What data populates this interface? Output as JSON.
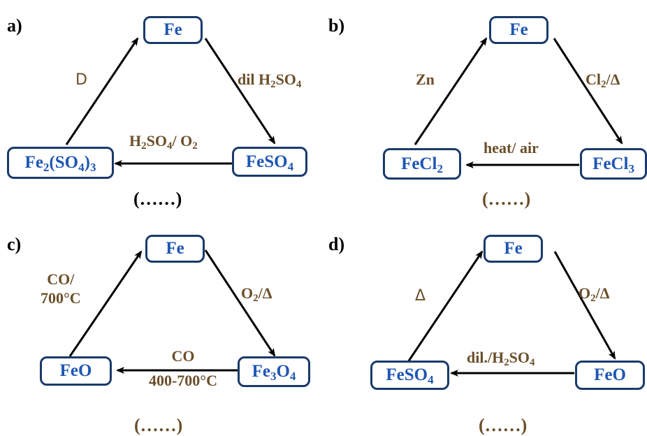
{
  "panels": [
    {
      "letter": "a)",
      "top": {
        "text": "Fe"
      },
      "right": {
        "base": "FeSO",
        "sub": "4"
      },
      "left": {
        "p1": "Fe",
        "s1": "2",
        "p2": "(SO",
        "s2": "4",
        "p3": ")",
        "s3": "3"
      },
      "edge_left": "D",
      "edge_right": {
        "p1": "dil H",
        "s1": "2",
        "p2": "SO",
        "s2": "4"
      },
      "edge_bottom": {
        "p1": "H",
        "s1": "2",
        "p2": "SO",
        "s2": "4",
        "p3": "/ O",
        "s3": "2"
      },
      "blank": "(……)"
    },
    {
      "letter": "b)",
      "top": {
        "text": "Fe"
      },
      "right": {
        "base": "FeCl",
        "sub": "3"
      },
      "left": {
        "base": "FeCl",
        "sub": "2"
      },
      "edge_left": "Zn",
      "edge_right": {
        "p1": "Cl",
        "s1": "2",
        "p2": "/Δ"
      },
      "edge_bottom": "heat/ air",
      "blank": "(……)"
    },
    {
      "letter": "c)",
      "top": {
        "text": "Fe"
      },
      "right": {
        "p1": "Fe",
        "s1": "3",
        "p2": "O",
        "s2": "4"
      },
      "left": {
        "text": "FeO"
      },
      "edge_left": {
        "line1": "CO/",
        "line2": "700°C"
      },
      "edge_right": {
        "p1": "O",
        "s1": "2",
        "p2": "/Δ"
      },
      "edge_bottom": {
        "line1": "CO",
        "line2": "400-700°C"
      },
      "blank": "(……)"
    },
    {
      "letter": "d)",
      "top": {
        "text": "Fe"
      },
      "right": {
        "text": "FeO"
      },
      "left": {
        "base": "FeSO",
        "sub": "4"
      },
      "edge_left": "Δ",
      "edge_right": {
        "p1": "O",
        "s1": "2",
        "p2": "/Δ"
      },
      "edge_bottom": {
        "p1": "dil./H",
        "s1": "2",
        "p2": "SO",
        "s2": "4"
      },
      "blank": "(……)"
    }
  ]
}
